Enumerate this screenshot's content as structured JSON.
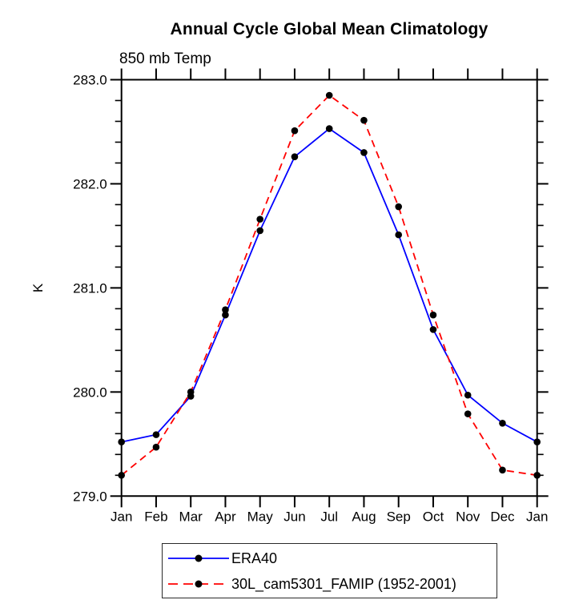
{
  "title": "Annual Cycle Global Mean Climatology",
  "subtitle": "850 mb Temp",
  "chart_data": {
    "type": "line",
    "title": "Annual Cycle Global Mean Climatology",
    "subtitle": "850 mb Temp",
    "xlabel": "",
    "ylabel": "K",
    "x_categories": [
      "Jan",
      "Feb",
      "Mar",
      "Apr",
      "May",
      "Jun",
      "Jul",
      "Aug",
      "Sep",
      "Oct",
      "Nov",
      "Dec",
      "Jan"
    ],
    "ylim": [
      279.0,
      283.0
    ],
    "y_major_step": 1.0,
    "y_minor_step": 0.2,
    "y_tick_labels": [
      "279.0",
      "280.0",
      "281.0",
      "282.0",
      "283.0"
    ],
    "grid": false,
    "legend_position": "bottom",
    "axis_color": "#000000",
    "background_color": "#ffffff",
    "series": [
      {
        "name": "ERA40",
        "color": "#0000ff",
        "style": "solid",
        "marker": "circle",
        "marker_color": "#000000",
        "values": [
          279.52,
          279.59,
          279.96,
          280.74,
          281.55,
          282.26,
          282.53,
          282.3,
          281.51,
          280.6,
          279.97,
          279.7,
          279.52
        ]
      },
      {
        "name": "30L_cam5301_FAMIP (1952-2001)",
        "color": "#ff0000",
        "style": "dashed",
        "marker": "circle",
        "marker_color": "#000000",
        "values": [
          279.2,
          279.47,
          280.0,
          280.79,
          281.66,
          282.51,
          282.85,
          282.61,
          281.78,
          280.74,
          279.79,
          279.25,
          279.2
        ]
      }
    ]
  }
}
